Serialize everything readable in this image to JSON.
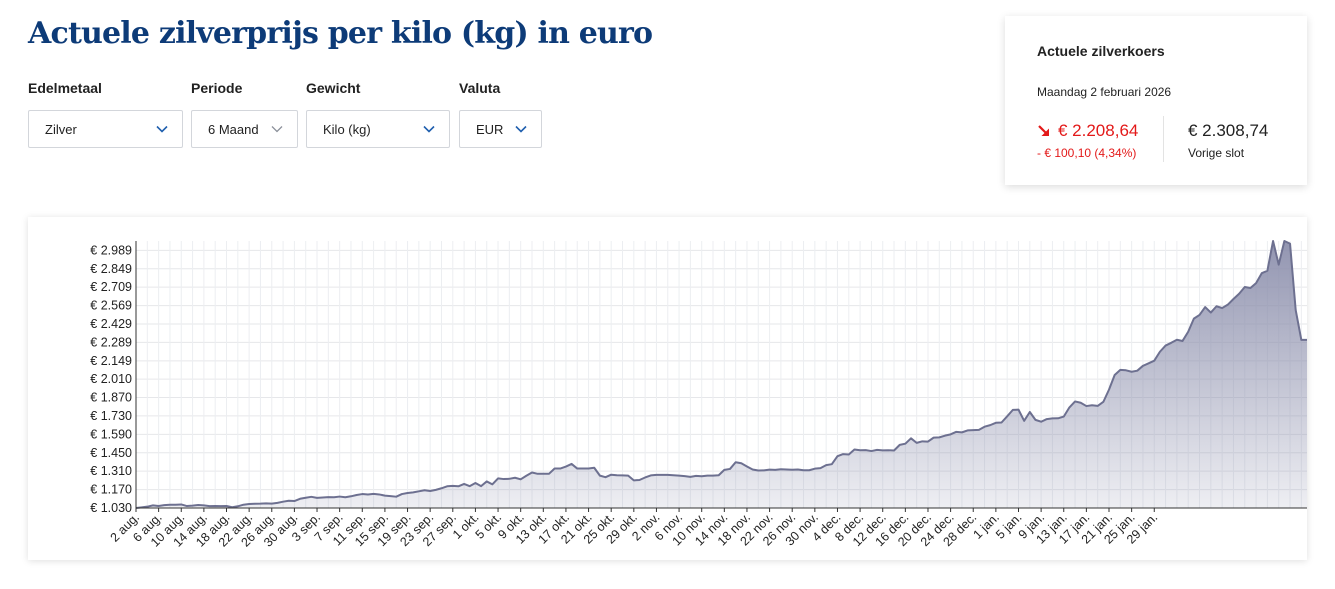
{
  "page": {
    "title": "Actuele zilverprijs per kilo (kg) in euro"
  },
  "filters": [
    {
      "label": "Edelmetaal",
      "value": "Zilver"
    },
    {
      "label": "Periode",
      "value": "6 Maand"
    },
    {
      "label": "Gewicht",
      "value": "Kilo (kg)"
    },
    {
      "label": "Valuta",
      "value": "EUR"
    }
  ],
  "rate_card": {
    "title": "Actuele zilverkoers",
    "date": "Maandag 2 februari 2026",
    "current_price": "€ 2.208,64",
    "change": "- € 100,10 (4,34%)",
    "previous_price": "€ 2.308,74",
    "previous_label": "Vorige slot"
  },
  "colors": {
    "title": "#0d3b78",
    "down": "#e31919",
    "series_line": "#6d7090",
    "accent": "#1f5fae"
  },
  "chart_data": {
    "type": "area",
    "title": "",
    "xlabel": "",
    "ylabel": "",
    "grid": true,
    "ylim": [
      1030,
      3060
    ],
    "y_ticks": [
      "€ 1.030",
      "€ 1.170",
      "€ 1.310",
      "€ 1.450",
      "€ 1.590",
      "€ 1.730",
      "€ 1.870",
      "€ 2.010",
      "€ 2.149",
      "€ 2.289",
      "€ 2.429",
      "€ 2.569",
      "€ 2.709",
      "€ 2.849",
      "€ 2.989"
    ],
    "y_tick_values": [
      1030,
      1170,
      1310,
      1450,
      1590,
      1730,
      1870,
      2010,
      2149,
      2289,
      2429,
      2569,
      2709,
      2849,
      2989
    ],
    "x_ticks": [
      "2 aug.",
      "6 aug.",
      "10 aug.",
      "14 aug.",
      "18 aug.",
      "22 aug.",
      "26 aug.",
      "30 aug.",
      "3 sep.",
      "7 sep.",
      "11 sep.",
      "15 sep.",
      "19 sep.",
      "23 sep.",
      "27 sep.",
      "1 okt.",
      "5 okt.",
      "9 okt.",
      "13 okt.",
      "17 okt.",
      "21 okt.",
      "25 okt.",
      "29 okt.",
      "2 nov.",
      "6 nov.",
      "10 nov.",
      "14 nov.",
      "18 nov.",
      "22 nov.",
      "26 nov.",
      "30 nov.",
      "4 dec.",
      "8 dec.",
      "12 dec.",
      "16 dec.",
      "20 dec.",
      "24 dec.",
      "28 dec.",
      "1 jan.",
      "5 jan.",
      "9 jan.",
      "13 jan.",
      "17 jan.",
      "21 jan.",
      "25 jan.",
      "29 jan."
    ],
    "x_start": "2 aug.",
    "series": [
      {
        "values": [
          1030,
          1035,
          1040,
          1050,
          1045,
          1052,
          1055,
          1055,
          1057,
          1045,
          1048,
          1053,
          1050,
          1044,
          1045,
          1044,
          1045,
          1036,
          1043,
          1055,
          1060,
          1062,
          1063,
          1065,
          1063,
          1069,
          1078,
          1085,
          1083,
          1100,
          1108,
          1115,
          1107,
          1110,
          1113,
          1112,
          1117,
          1112,
          1119,
          1129,
          1136,
          1133,
          1137,
          1133,
          1124,
          1120,
          1116,
          1136,
          1144,
          1149,
          1157,
          1165,
          1159,
          1168,
          1180,
          1195,
          1198,
          1195,
          1213,
          1196,
          1220,
          1196,
          1232,
          1210,
          1255,
          1250,
          1252,
          1260,
          1248,
          1275,
          1300,
          1290,
          1290,
          1290,
          1330,
          1330,
          1345,
          1365,
          1330,
          1330,
          1330,
          1336,
          1276,
          1264,
          1283,
          1279,
          1278,
          1276,
          1240,
          1243,
          1262,
          1278,
          1282,
          1282,
          1282,
          1279,
          1276,
          1272,
          1267,
          1274,
          1271,
          1276,
          1276,
          1279,
          1320,
          1327,
          1378,
          1370,
          1346,
          1323,
          1315,
          1316,
          1322,
          1320,
          1325,
          1323,
          1321,
          1323,
          1317,
          1317,
          1329,
          1333,
          1356,
          1363,
          1424,
          1440,
          1437,
          1475,
          1469,
          1470,
          1463,
          1472,
          1468,
          1469,
          1467,
          1510,
          1519,
          1560,
          1525,
          1537,
          1535,
          1565,
          1567,
          1580,
          1590,
          1609,
          1605,
          1620,
          1622,
          1624,
          1648,
          1660,
          1678,
          1680,
          1727,
          1776,
          1778,
          1693,
          1760,
          1700,
          1686,
          1706,
          1711,
          1712,
          1725,
          1795,
          1840,
          1830,
          1805,
          1811,
          1806,
          1837,
          1930,
          2041,
          2080,
          2077,
          2066,
          2074,
          2111,
          2130,
          2150,
          2218,
          2265,
          2286,
          2309,
          2300,
          2370,
          2470,
          2498,
          2558,
          2516,
          2564,
          2550,
          2576,
          2619,
          2659,
          2710,
          2703,
          2740,
          2815,
          2834,
          3080,
          2880,
          3080,
          3040,
          2535,
          2308,
          2308
        ]
      }
    ]
  }
}
